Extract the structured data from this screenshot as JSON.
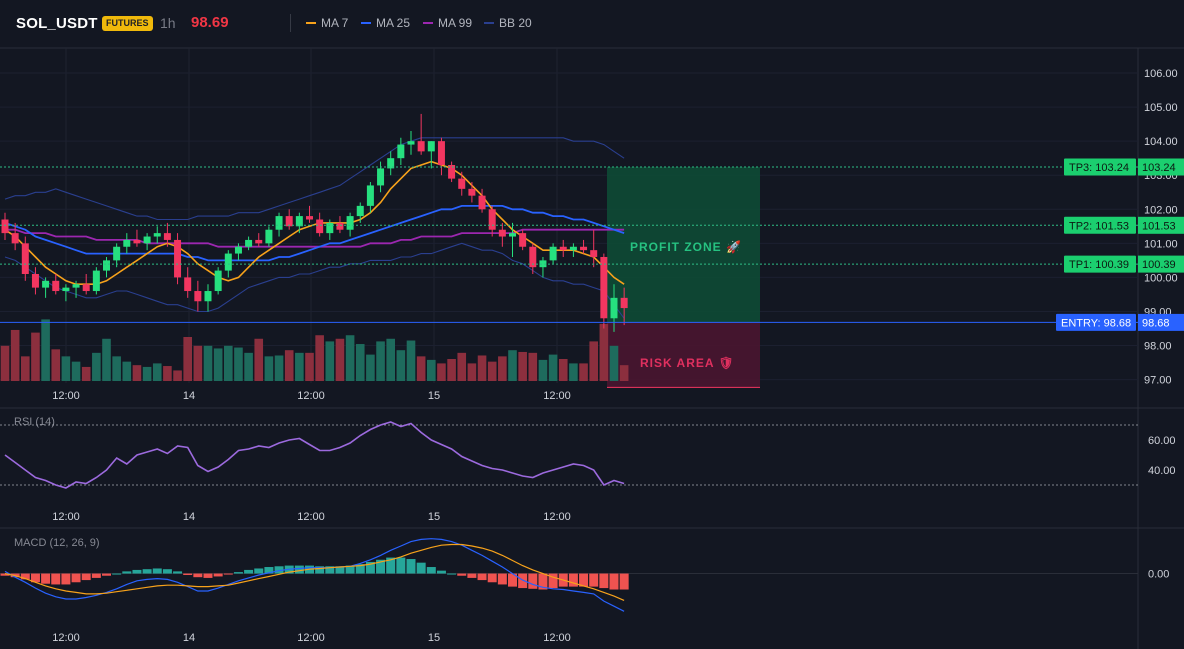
{
  "header": {
    "symbol": "SOL_USDT",
    "badge": "FUTURES",
    "interval": "1h",
    "price": "98.69",
    "indicators": [
      {
        "label": "MA 7",
        "color": "#f7a21b"
      },
      {
        "label": "MA 25",
        "color": "#2962ff"
      },
      {
        "label": "MA 99",
        "color": "#9c27b0"
      },
      {
        "label": "BB 20",
        "color": "#2a3f8f"
      }
    ]
  },
  "colors": {
    "up": "#26e07f",
    "down": "#f23660",
    "vol_up": "#1e6b5d",
    "vol_down": "#8c2f3e",
    "profit_fill": "#0e4a35",
    "risk_fill": "#4a1530",
    "entry": "#2962ff",
    "tp": "#2ebd85",
    "rsi": "#9c6ade",
    "macd_line": "#2962ff",
    "signal_line": "#f7a21b",
    "hist_up": "#26a69a",
    "hist_down": "#ef5350"
  },
  "trade": {
    "profit_label": "PROFIT ZONE 🚀",
    "risk_label": "RISK AREA 🛡",
    "entry_label": "ENTRY: 98.68",
    "entry_value": "98.68",
    "entry": 98.68,
    "stop": 97.3,
    "targets": [
      {
        "label": "TP1: 100.39",
        "value_text": "100.39",
        "value": 100.39
      },
      {
        "label": "TP2: 101.53",
        "value_text": "101.53",
        "value": 101.53
      },
      {
        "label": "TP3: 103.24",
        "value_text": "103.24",
        "value": 103.24
      }
    ]
  },
  "time_axis": [
    "12:00",
    "14",
    "12:00",
    "15",
    "12:00"
  ],
  "chart_data": [
    {
      "type": "candlestick",
      "ylim": [
        96.9,
        106.5
      ],
      "yticks": [
        "106.00",
        "105.00",
        "104.00",
        "103.00",
        "102.00",
        "101.00",
        "100.00",
        "99.00",
        "98.00",
        "97.00"
      ],
      "ytick_values": [
        106,
        105,
        104,
        103,
        102,
        101,
        100,
        99,
        98,
        97
      ],
      "candles": [
        [
          101.7,
          101.9,
          101.1,
          101.3
        ],
        [
          101.3,
          101.6,
          100.8,
          101.0
        ],
        [
          101.0,
          101.2,
          99.9,
          100.1
        ],
        [
          100.1,
          100.3,
          99.5,
          99.7
        ],
        [
          99.7,
          100.0,
          99.4,
          99.9
        ],
        [
          99.9,
          100.1,
          99.5,
          99.6
        ],
        [
          99.6,
          99.8,
          99.3,
          99.7
        ],
        [
          99.7,
          99.9,
          99.4,
          99.8
        ],
        [
          99.8,
          100.1,
          99.5,
          99.6
        ],
        [
          99.6,
          100.3,
          99.5,
          100.2
        ],
        [
          100.2,
          100.6,
          100.0,
          100.5
        ],
        [
          100.5,
          101.0,
          100.3,
          100.9
        ],
        [
          100.9,
          101.3,
          100.7,
          101.1
        ],
        [
          101.1,
          101.4,
          100.9,
          101.0
        ],
        [
          101.0,
          101.3,
          100.8,
          101.2
        ],
        [
          101.2,
          101.5,
          101.0,
          101.3
        ],
        [
          101.3,
          101.6,
          100.9,
          101.1
        ],
        [
          101.1,
          101.3,
          99.8,
          100.0
        ],
        [
          100.0,
          100.3,
          99.4,
          99.6
        ],
        [
          99.6,
          99.9,
          99.0,
          99.3
        ],
        [
          99.3,
          99.8,
          99.0,
          99.6
        ],
        [
          99.6,
          100.3,
          99.5,
          100.2
        ],
        [
          100.2,
          100.8,
          100.0,
          100.7
        ],
        [
          100.7,
          101.0,
          100.5,
          100.9
        ],
        [
          100.9,
          101.2,
          100.8,
          101.1
        ],
        [
          101.1,
          101.3,
          100.9,
          101.0
        ],
        [
          101.0,
          101.5,
          100.9,
          101.4
        ],
        [
          101.4,
          101.9,
          101.2,
          101.8
        ],
        [
          101.8,
          102.0,
          101.4,
          101.5
        ],
        [
          101.5,
          101.9,
          101.3,
          101.8
        ],
        [
          101.8,
          102.1,
          101.6,
          101.7
        ],
        [
          101.7,
          101.9,
          101.2,
          101.3
        ],
        [
          101.3,
          101.7,
          101.1,
          101.6
        ],
        [
          101.6,
          101.8,
          101.3,
          101.4
        ],
        [
          101.4,
          101.9,
          101.2,
          101.8
        ],
        [
          101.8,
          102.2,
          101.6,
          102.1
        ],
        [
          102.1,
          102.8,
          101.9,
          102.7
        ],
        [
          102.7,
          103.4,
          102.5,
          103.2
        ],
        [
          103.2,
          103.7,
          103.0,
          103.5
        ],
        [
          103.5,
          104.1,
          103.3,
          103.9
        ],
        [
          103.9,
          104.3,
          103.6,
          104.0
        ],
        [
          104.0,
          104.8,
          103.6,
          103.7
        ],
        [
          103.7,
          104.0,
          103.2,
          104.0
        ],
        [
          104.0,
          104.1,
          103.0,
          103.3
        ],
        [
          103.3,
          103.4,
          102.8,
          102.9
        ],
        [
          102.9,
          103.1,
          102.4,
          102.6
        ],
        [
          102.6,
          102.8,
          102.2,
          102.4
        ],
        [
          102.4,
          102.6,
          101.9,
          102.0
        ],
        [
          102.0,
          102.1,
          101.2,
          101.4
        ],
        [
          101.4,
          101.6,
          100.9,
          101.2
        ],
        [
          101.2,
          101.6,
          100.6,
          101.3
        ],
        [
          101.3,
          101.4,
          100.8,
          100.9
        ],
        [
          100.9,
          101.0,
          100.1,
          100.3
        ],
        [
          100.3,
          100.6,
          100.0,
          100.5
        ],
        [
          100.5,
          101.0,
          100.4,
          100.9
        ],
        [
          100.9,
          101.1,
          100.6,
          100.8
        ],
        [
          100.8,
          101.0,
          100.6,
          100.9
        ],
        [
          100.9,
          101.1,
          100.7,
          100.8
        ],
        [
          100.8,
          101.4,
          100.3,
          100.6
        ],
        [
          100.6,
          100.7,
          98.5,
          98.8
        ],
        [
          98.8,
          99.8,
          98.4,
          99.4
        ],
        [
          99.4,
          99.7,
          98.6,
          99.1
        ]
      ],
      "volume": [
        40,
        58,
        28,
        55,
        70,
        36,
        28,
        22,
        16,
        32,
        48,
        28,
        22,
        18,
        16,
        20,
        17,
        12,
        50,
        40,
        40,
        37,
        40,
        38,
        32,
        48,
        28,
        29,
        35,
        32,
        32,
        52,
        45,
        48,
        52,
        42,
        30,
        45,
        48,
        35,
        46,
        28,
        24,
        20,
        25,
        32,
        20,
        29,
        22,
        28,
        35,
        33,
        32,
        24,
        30,
        25,
        20,
        20,
        45,
        65,
        40,
        18
      ],
      "ma7": [
        101.4,
        101.2,
        100.9,
        100.6,
        100.3,
        100.1,
        99.9,
        99.8,
        99.8,
        99.8,
        99.9,
        100.1,
        100.3,
        100.5,
        100.7,
        100.9,
        101.0,
        100.9,
        100.7,
        100.4,
        100.2,
        100.0,
        99.9,
        100.0,
        100.3,
        100.6,
        100.8,
        101.0,
        101.2,
        101.4,
        101.5,
        101.6,
        101.6,
        101.6,
        101.6,
        101.7,
        101.9,
        102.2,
        102.6,
        102.9,
        103.2,
        103.3,
        103.4,
        103.3,
        103.2,
        103.0,
        102.7,
        102.4,
        102.0,
        101.7,
        101.4,
        101.2,
        101.0,
        100.8,
        100.8,
        100.8,
        100.8,
        100.7,
        100.6,
        100.3,
        100.0,
        99.8
      ],
      "ma25": [
        101.6,
        101.5,
        101.4,
        101.2,
        101.1,
        101.0,
        100.9,
        100.8,
        100.7,
        100.7,
        100.7,
        100.7,
        100.7,
        100.7,
        100.7,
        100.7,
        100.7,
        100.7,
        100.6,
        100.6,
        100.5,
        100.5,
        100.5,
        100.5,
        100.5,
        100.5,
        100.5,
        100.6,
        100.6,
        100.7,
        100.8,
        100.9,
        101.0,
        101.0,
        101.1,
        101.2,
        101.3,
        101.4,
        101.5,
        101.6,
        101.7,
        101.8,
        101.9,
        102.0,
        102.0,
        102.1,
        102.1,
        102.1,
        102.1,
        102.1,
        102.0,
        102.0,
        101.9,
        101.9,
        101.8,
        101.8,
        101.7,
        101.7,
        101.6,
        101.5,
        101.4,
        101.3
      ],
      "ma99": [
        101.4,
        101.4,
        101.3,
        101.3,
        101.3,
        101.2,
        101.2,
        101.2,
        101.2,
        101.1,
        101.1,
        101.1,
        101.1,
        101.1,
        101.0,
        101.0,
        101.0,
        101.0,
        101.0,
        101.0,
        101.0,
        100.9,
        100.9,
        100.9,
        100.9,
        100.9,
        100.9,
        100.9,
        100.9,
        100.9,
        100.9,
        100.9,
        100.9,
        100.9,
        100.9,
        100.9,
        101.0,
        101.0,
        101.0,
        101.1,
        101.1,
        101.2,
        101.2,
        101.2,
        101.2,
        101.3,
        101.3,
        101.3,
        101.3,
        101.3,
        101.3,
        101.4,
        101.4,
        101.4,
        101.4,
        101.4,
        101.4,
        101.4,
        101.4,
        101.4,
        101.4,
        101.4
      ],
      "bb_upper": [
        102.3,
        102.4,
        102.4,
        102.5,
        102.5,
        102.6,
        102.5,
        102.4,
        102.3,
        102.2,
        102.1,
        102.0,
        101.9,
        101.8,
        101.8,
        101.7,
        101.7,
        101.7,
        101.7,
        101.8,
        101.8,
        101.8,
        101.8,
        101.9,
        101.9,
        101.9,
        102.0,
        102.1,
        102.2,
        102.3,
        102.4,
        102.5,
        102.6,
        102.7,
        102.9,
        103.1,
        103.3,
        103.5,
        103.7,
        103.9,
        104.0,
        104.1,
        104.1,
        104.1,
        104.1,
        104.1,
        104.1,
        104.1,
        104.1,
        104.1,
        104.1,
        104.1,
        104.1,
        104.1,
        104.1,
        104.1,
        104.0,
        104.0,
        104.0,
        103.9,
        103.7,
        103.5
      ],
      "bb_lower": [
        100.6,
        100.5,
        100.3,
        100.1,
        99.9,
        99.7,
        99.6,
        99.5,
        99.4,
        99.4,
        99.5,
        99.6,
        99.6,
        99.5,
        99.4,
        99.3,
        99.2,
        99.2,
        99.1,
        99.0,
        99.0,
        99.1,
        99.3,
        99.5,
        99.7,
        99.8,
        99.9,
        100.0,
        100.0,
        100.1,
        100.1,
        100.2,
        100.3,
        100.3,
        100.4,
        100.4,
        100.5,
        100.5,
        100.5,
        100.6,
        100.6,
        100.7,
        100.7,
        100.8,
        100.9,
        101.0,
        100.9,
        100.8,
        100.8,
        100.7,
        100.5,
        100.4,
        100.2,
        100.0,
        99.9,
        99.9,
        99.8,
        99.8,
        99.7,
        99.6,
        99.2,
        98.8
      ]
    },
    {
      "type": "line",
      "title": "RSI (14)",
      "ylim": [
        20,
        80
      ],
      "yticks": [
        "60.00",
        "40.00"
      ],
      "ytick_values": [
        60,
        40
      ],
      "levels": [
        70,
        30
      ],
      "values": [
        50,
        45,
        40,
        35,
        33,
        30,
        28,
        32,
        31,
        35,
        40,
        48,
        44,
        50,
        52,
        54,
        51,
        56,
        55,
        43,
        39,
        42,
        47,
        53,
        54,
        56,
        55,
        58,
        60,
        61,
        57,
        53,
        53,
        55,
        58,
        63,
        67,
        70,
        72,
        69,
        71,
        65,
        60,
        57,
        54,
        49,
        46,
        43,
        41,
        40,
        38,
        36,
        35,
        38,
        40,
        42,
        44,
        43,
        40,
        30,
        33,
        31
      ]
    },
    {
      "type": "bar",
      "title": "MACD (12, 26, 9)",
      "ylim": [
        -0.75,
        0.6
      ],
      "yticks": [
        "0.00"
      ],
      "ytick_values": [
        0
      ],
      "histogram": [
        -0.03,
        -0.05,
        -0.08,
        -0.12,
        -0.14,
        -0.15,
        -0.15,
        -0.12,
        -0.09,
        -0.06,
        -0.03,
        0.0,
        0.03,
        0.05,
        0.06,
        0.07,
        0.06,
        0.03,
        -0.02,
        -0.05,
        -0.06,
        -0.04,
        -0.01,
        0.02,
        0.05,
        0.07,
        0.09,
        0.1,
        0.11,
        0.11,
        0.11,
        0.1,
        0.1,
        0.1,
        0.11,
        0.13,
        0.16,
        0.19,
        0.22,
        0.22,
        0.2,
        0.15,
        0.09,
        0.04,
        0.0,
        -0.03,
        -0.06,
        -0.09,
        -0.12,
        -0.15,
        -0.18,
        -0.2,
        -0.21,
        -0.22,
        -0.2,
        -0.18,
        -0.18,
        -0.18,
        -0.18,
        -0.2,
        -0.22,
        -0.22
      ],
      "macd": [
        0.03,
        -0.05,
        -0.12,
        -0.2,
        -0.27,
        -0.32,
        -0.35,
        -0.35,
        -0.33,
        -0.3,
        -0.26,
        -0.21,
        -0.15,
        -0.1,
        -0.08,
        -0.07,
        -0.08,
        -0.12,
        -0.18,
        -0.24,
        -0.24,
        -0.2,
        -0.15,
        -0.1,
        -0.06,
        -0.02,
        0.01,
        0.04,
        0.06,
        0.07,
        0.08,
        0.08,
        0.08,
        0.09,
        0.1,
        0.14,
        0.19,
        0.25,
        0.32,
        0.38,
        0.44,
        0.47,
        0.48,
        0.47,
        0.44,
        0.39,
        0.32,
        0.25,
        0.17,
        0.09,
        0.0,
        -0.09,
        -0.15,
        -0.19,
        -0.21,
        -0.22,
        -0.24,
        -0.26,
        -0.28,
        -0.38,
        -0.45,
        -0.52
      ],
      "signal": [
        0.0,
        -0.03,
        -0.07,
        -0.12,
        -0.17,
        -0.21,
        -0.24,
        -0.26,
        -0.28,
        -0.28,
        -0.27,
        -0.25,
        -0.23,
        -0.21,
        -0.19,
        -0.17,
        -0.16,
        -0.16,
        -0.17,
        -0.18,
        -0.18,
        -0.17,
        -0.16,
        -0.13,
        -0.1,
        -0.07,
        -0.04,
        -0.01,
        0.02,
        0.04,
        0.06,
        0.07,
        0.08,
        0.09,
        0.1,
        0.11,
        0.13,
        0.16,
        0.19,
        0.23,
        0.28,
        0.32,
        0.36,
        0.39,
        0.4,
        0.4,
        0.38,
        0.35,
        0.31,
        0.25,
        0.18,
        0.11,
        0.05,
        0.0,
        -0.05,
        -0.09,
        -0.13,
        -0.17,
        -0.21,
        -0.26,
        -0.31,
        -0.37
      ]
    }
  ]
}
